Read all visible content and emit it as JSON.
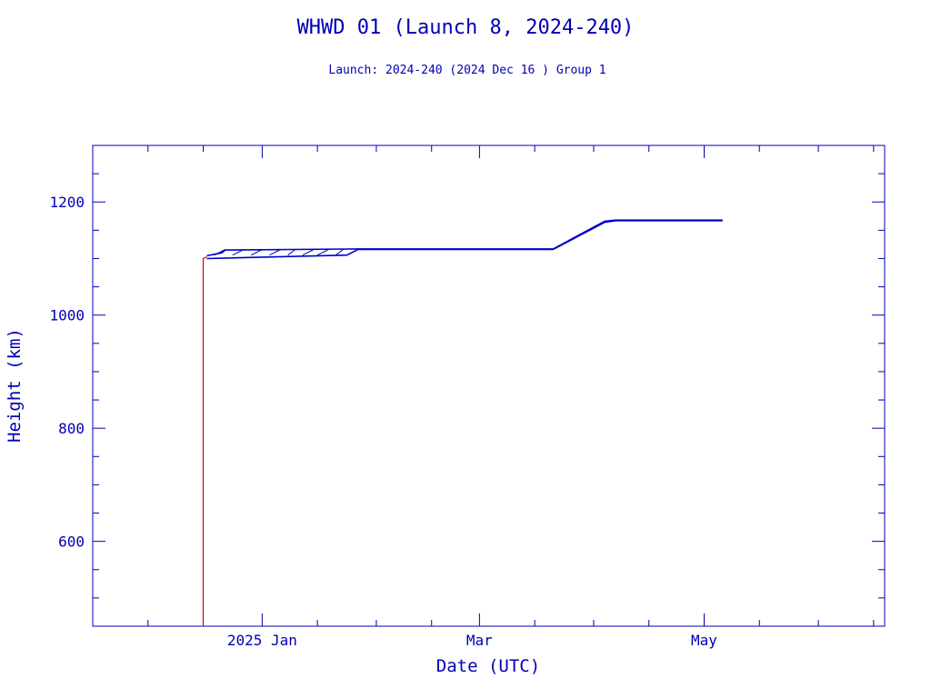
{
  "chart_data": {
    "type": "line",
    "title": "WHWD 01 (Launch 8, 2024-240)",
    "subtitle": "Launch: 2024-240  (2024 Dec 16 )  Group 1",
    "xlabel": "Date (UTC)",
    "ylabel": "Height (km)",
    "x_ticks": [
      {
        "date": "2025-01-01",
        "label": "2025 Jan"
      },
      {
        "date": "2025-03-01",
        "label": "Mar"
      },
      {
        "date": "2025-05-01",
        "label": "May"
      }
    ],
    "x_minor_dates": [
      "2024-12-01",
      "2024-12-16",
      "2025-01-16",
      "2025-02-01",
      "2025-02-16",
      "2025-03-16",
      "2025-04-01",
      "2025-04-16",
      "2025-05-16",
      "2025-06-01",
      "2025-06-16"
    ],
    "xlim": [
      "2024-11-16",
      "2025-06-19"
    ],
    "y_ticks": [
      600,
      800,
      1000,
      1200
    ],
    "y_minor_step": 50,
    "ylim": [
      450,
      1300
    ],
    "grid": false,
    "colors": {
      "axis": "#0000b4",
      "ascent": "#d40000",
      "orbit": "#0000c8"
    },
    "series": [
      {
        "kind": "ascent",
        "points": [
          [
            "2024-12-16",
            450
          ],
          [
            "2024-12-16",
            1088
          ],
          [
            "2024-12-16",
            1100
          ],
          [
            "2024-12-17",
            1103
          ]
        ]
      },
      {
        "kind": "envelope-upper",
        "points": [
          [
            "2024-12-17",
            1105
          ],
          [
            "2024-12-21",
            1110
          ],
          [
            "2024-12-22",
            1115
          ],
          [
            "2025-01-27",
            1117
          ],
          [
            "2025-03-21",
            1117
          ],
          [
            "2025-04-04",
            1166
          ],
          [
            "2025-04-07",
            1168
          ],
          [
            "2025-05-06",
            1168
          ]
        ]
      },
      {
        "kind": "envelope-lower",
        "points": [
          [
            "2024-12-17",
            1100
          ],
          [
            "2025-01-24",
            1106
          ],
          [
            "2025-01-27",
            1116
          ],
          [
            "2025-03-21",
            1116
          ],
          [
            "2025-04-04",
            1164
          ],
          [
            "2025-04-07",
            1167
          ],
          [
            "2025-05-06",
            1167
          ]
        ]
      },
      {
        "kind": "hatch",
        "ranges": [
          [
            "2024-12-19",
            "2024-12-22"
          ],
          [
            "2024-12-24",
            "2024-12-27"
          ],
          [
            "2024-12-29",
            "2025-01-01"
          ],
          [
            "2025-01-03",
            "2025-01-06"
          ],
          [
            "2025-01-08",
            "2025-01-10"
          ],
          [
            "2025-01-12",
            "2025-01-15"
          ],
          [
            "2025-01-16",
            "2025-01-19"
          ],
          [
            "2025-01-21",
            "2025-01-23"
          ]
        ],
        "bottom": 1106,
        "top": 1116
      }
    ]
  }
}
